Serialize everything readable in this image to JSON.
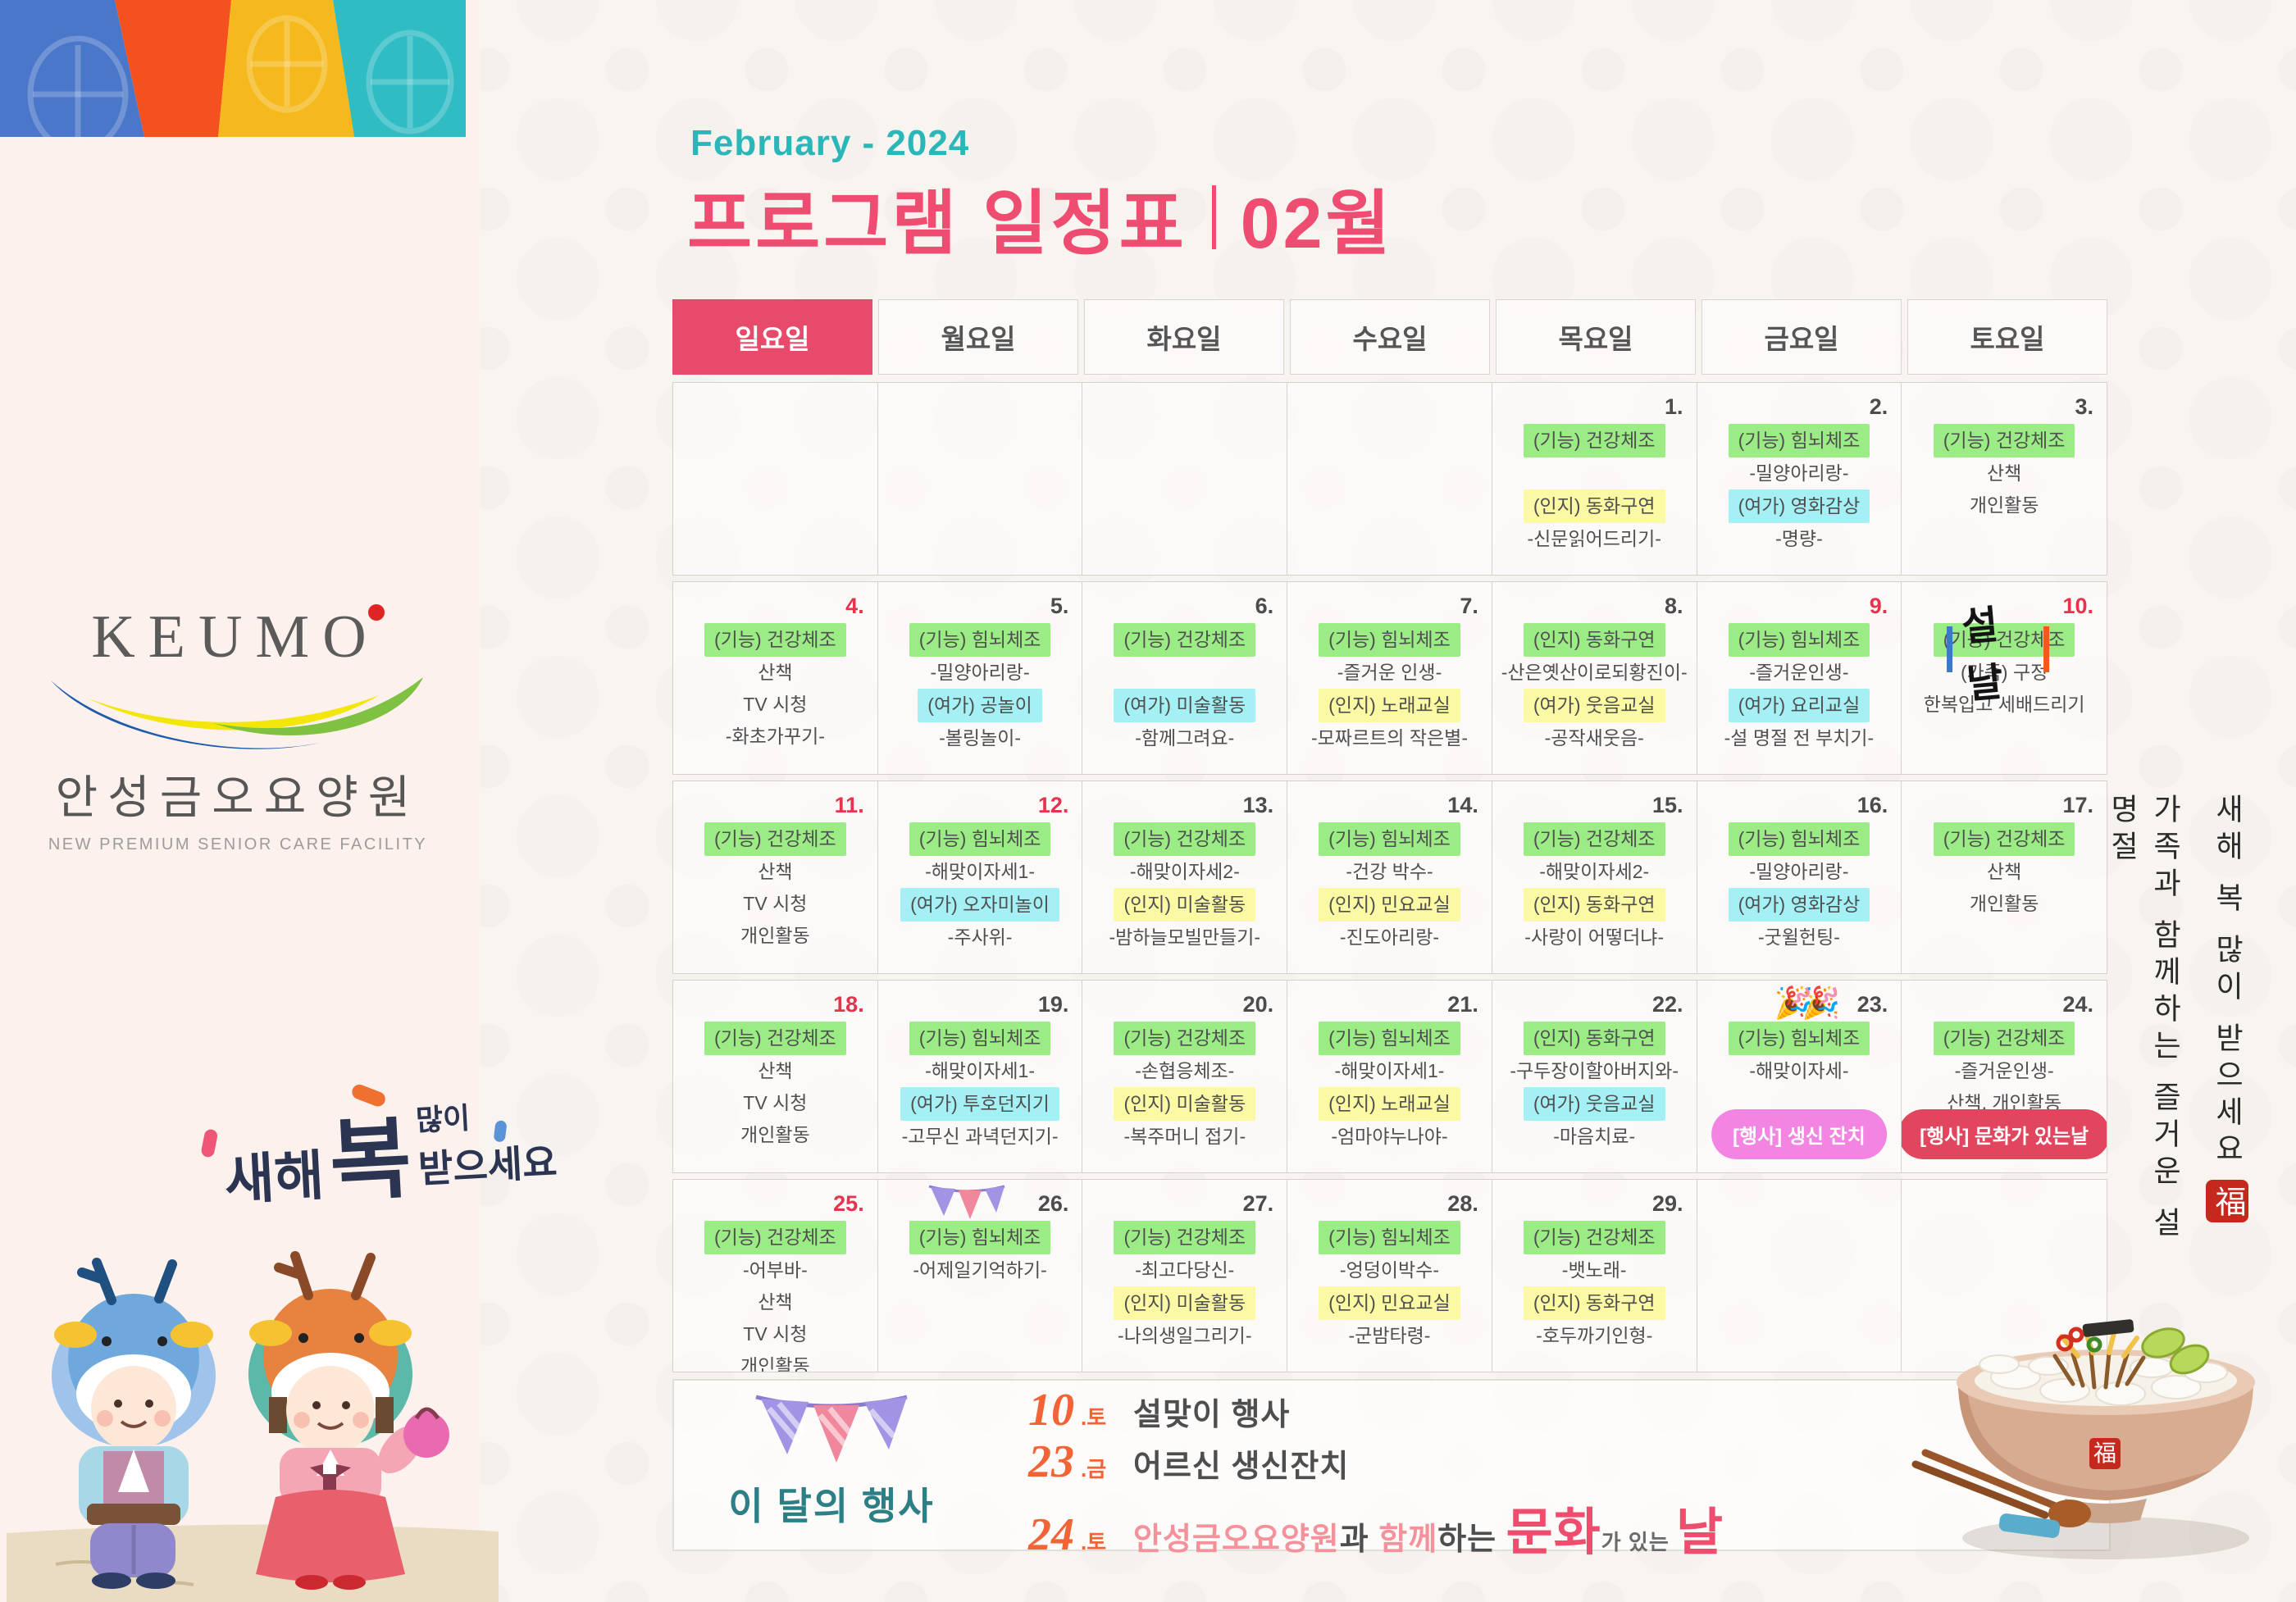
{
  "header": {
    "month_en": "February - 2024",
    "title": "프로그램 일정표",
    "month_kr": "02월"
  },
  "sidebar": {
    "brand": {
      "name": "KEUMO",
      "org": "안성금오요양원",
      "tagline": "NEW PREMIUM SENIOR CARE  FACILITY"
    },
    "calli": {
      "p1": "새해",
      "p2": "복",
      "p3": "많이",
      "p4": "받으세요"
    }
  },
  "colors": {
    "title_pink": "#ee4d71",
    "month_teal": "#2ab7ba",
    "sunday_header": "#e84a6b",
    "holiday_red": "#e5344e",
    "event_title_teal": "#2d7f86",
    "event_number_orange": "#f26335"
  },
  "calendar": {
    "day_headers": [
      "일요일",
      "월요일",
      "화요일",
      "수요일",
      "목요일",
      "금요일",
      "토요일"
    ],
    "highlight_colors": {
      "green": "#9cec86",
      "yellow": "#fcf9a4",
      "cyan": "#a4f0f4"
    },
    "badge_colors": {
      "pink": "#f285e2",
      "red": "#e2455e"
    },
    "seollal_label": "설날",
    "party_emoji": "🎉🎉",
    "weeks": [
      [
        {},
        {},
        {},
        {},
        {
          "day": "1",
          "lines": [
            {
              "t": "(기능) 건강체조",
              "h": "green"
            },
            {
              "t": ""
            },
            {
              "t": "(인지) 동화구연",
              "h": "yellow"
            },
            {
              "t": "-신문읽어드리기-"
            }
          ]
        },
        {
          "day": "2",
          "lines": [
            {
              "t": "(기능) 힘뇌체조",
              "h": "green"
            },
            {
              "t": "-밀양아리랑-"
            },
            {
              "t": "(여가) 영화감상",
              "h": "cyan"
            },
            {
              "t": "-명량-"
            }
          ]
        },
        {
          "day": "3",
          "lines": [
            {
              "t": "(기능) 건강체조",
              "h": "green"
            },
            {
              "t": "산책"
            },
            {
              "t": "개인활동"
            }
          ]
        }
      ],
      [
        {
          "day": "4",
          "red": true,
          "lines": [
            {
              "t": "(기능) 건강체조",
              "h": "green"
            },
            {
              "t": "산책"
            },
            {
              "t": "TV 시청"
            },
            {
              "t": "-화초가꾸기-"
            }
          ]
        },
        {
          "day": "5",
          "lines": [
            {
              "t": "(기능) 힘뇌체조",
              "h": "green"
            },
            {
              "t": "-밀양아리랑-"
            },
            {
              "t": "(여가) 공놀이",
              "h": "cyan"
            },
            {
              "t": "-볼링놀이-"
            }
          ]
        },
        {
          "day": "6",
          "lines": [
            {
              "t": "(기능) 건강체조",
              "h": "green"
            },
            {
              "t": ""
            },
            {
              "t": "(여가) 미술활동",
              "h": "cyan"
            },
            {
              "t": "-함께그려요-"
            }
          ]
        },
        {
          "day": "7",
          "lines": [
            {
              "t": "(기능) 힘뇌체조",
              "h": "green"
            },
            {
              "t": "-즐거운 인생-"
            },
            {
              "t": "(인지) 노래교실",
              "h": "yellow"
            },
            {
              "t": "-모짜르트의 작은별-"
            }
          ]
        },
        {
          "day": "8",
          "lines": [
            {
              "t": "(인지) 동화구연",
              "h": "green"
            },
            {
              "t": "-산은옛산이로되황진이-"
            },
            {
              "t": "(여가) 웃음교실",
              "h": "yellow"
            },
            {
              "t": "-공작새웃음-"
            }
          ]
        },
        {
          "day": "9",
          "red": true,
          "lines": [
            {
              "t": "(기능) 힘뇌체조",
              "h": "green"
            },
            {
              "t": "-즐거운인생-"
            },
            {
              "t": "(여가) 요리교실",
              "h": "cyan"
            },
            {
              "t": "-설 명절 전 부치기-"
            }
          ]
        },
        {
          "day": "10",
          "red": true,
          "marker": "seollal",
          "lines": [
            {
              "t": "(기능) 건강체조",
              "h": "green"
            },
            {
              "t": "(가족) 구정"
            },
            {
              "t": "한복입고 세배드리기"
            }
          ]
        }
      ],
      [
        {
          "day": "11",
          "red": true,
          "lines": [
            {
              "t": "(기능) 건강체조",
              "h": "green"
            },
            {
              "t": "산책"
            },
            {
              "t": "TV 시청"
            },
            {
              "t": "개인활동"
            }
          ]
        },
        {
          "day": "12",
          "red": true,
          "lines": [
            {
              "t": "(기능) 힘뇌체조",
              "h": "green"
            },
            {
              "t": "-해맞이자세1-"
            },
            {
              "t": "(여가) 오자미놀이",
              "h": "cyan"
            },
            {
              "t": "-주사위-"
            }
          ]
        },
        {
          "day": "13",
          "lines": [
            {
              "t": "(기능) 건강체조",
              "h": "green"
            },
            {
              "t": "-해맞이자세2-"
            },
            {
              "t": "(인지) 미술활동",
              "h": "yellow"
            },
            {
              "t": "-밤하늘모빌만들기-"
            }
          ]
        },
        {
          "day": "14",
          "lines": [
            {
              "t": "(기능) 힘뇌체조",
              "h": "green"
            },
            {
              "t": "-건강 박수-"
            },
            {
              "t": "(인지) 민요교실",
              "h": "yellow"
            },
            {
              "t": "-진도아리랑-"
            }
          ]
        },
        {
          "day": "15",
          "lines": [
            {
              "t": "(기능) 건강체조",
              "h": "green"
            },
            {
              "t": "-해맞이자세2-"
            },
            {
              "t": "(인지) 동화구연",
              "h": "yellow"
            },
            {
              "t": "-사랑이 어떻더냐-"
            }
          ]
        },
        {
          "day": "16",
          "lines": [
            {
              "t": "(기능) 힘뇌체조",
              "h": "green"
            },
            {
              "t": "-밀양아리랑-"
            },
            {
              "t": "(여가) 영화감상",
              "h": "cyan"
            },
            {
              "t": "-굿윌헌팅-"
            }
          ]
        },
        {
          "day": "17",
          "lines": [
            {
              "t": "(기능) 건강체조",
              "h": "green"
            },
            {
              "t": "산책"
            },
            {
              "t": "개인활동"
            }
          ]
        }
      ],
      [
        {
          "day": "18",
          "red": true,
          "lines": [
            {
              "t": "(기능) 건강체조",
              "h": "green"
            },
            {
              "t": "산책"
            },
            {
              "t": "TV 시청"
            },
            {
              "t": "개인활동"
            }
          ]
        },
        {
          "day": "19",
          "lines": [
            {
              "t": "(기능) 힘뇌체조",
              "h": "green"
            },
            {
              "t": "-해맞이자세1-"
            },
            {
              "t": "(여가) 투호던지기",
              "h": "cyan"
            },
            {
              "t": "-고무신 과녁던지기-"
            }
          ]
        },
        {
          "day": "20",
          "lines": [
            {
              "t": "(기능) 건강체조",
              "h": "green"
            },
            {
              "t": "-손협응체조-"
            },
            {
              "t": "(인지) 미술활동",
              "h": "yellow"
            },
            {
              "t": "-복주머니 접기-"
            }
          ]
        },
        {
          "day": "21",
          "lines": [
            {
              "t": "(기능) 힘뇌체조",
              "h": "green"
            },
            {
              "t": "-해맞이자세1-"
            },
            {
              "t": "(인지) 노래교실",
              "h": "yellow"
            },
            {
              "t": "-엄마야누나야-"
            }
          ]
        },
        {
          "day": "22",
          "lines": [
            {
              "t": "(인지) 동화구연",
              "h": "green"
            },
            {
              "t": "-구두장이할아버지와-"
            },
            {
              "t": "(여가) 웃음교실",
              "h": "cyan"
            },
            {
              "t": "-마음치료-"
            }
          ]
        },
        {
          "day": "23",
          "marker": "party",
          "lines": [
            {
              "t": "(기능) 힘뇌체조",
              "h": "green"
            },
            {
              "t": "-해맞이자세-"
            }
          ],
          "badge": {
            "t": "[행사] 생신 잔치",
            "c": "pink"
          }
        },
        {
          "day": "24",
          "lines": [
            {
              "t": "(기능) 건강체조",
              "h": "green"
            },
            {
              "t": "-즐거운인생-"
            },
            {
              "t": "산책, 개인활동"
            }
          ],
          "badge": {
            "t": "[행사] 문화가 있는날",
            "c": "red"
          }
        }
      ],
      [
        {
          "day": "25",
          "red": true,
          "lines": [
            {
              "t": "(기능) 건강체조",
              "h": "green"
            },
            {
              "t": "-어부바-"
            },
            {
              "t": "산책"
            },
            {
              "t": "TV 시청"
            },
            {
              "t": "개인활동"
            }
          ]
        },
        {
          "day": "26",
          "marker": "bunting",
          "lines": [
            {
              "t": "(기능) 힘뇌체조",
              "h": "green"
            },
            {
              "t": "-어제일기억하기-"
            }
          ]
        },
        {
          "day": "27",
          "lines": [
            {
              "t": "(기능) 건강체조",
              "h": "green"
            },
            {
              "t": "-최고다당신-"
            },
            {
              "t": "(인지) 미술활동",
              "h": "yellow"
            },
            {
              "t": "-나의생일그리기-"
            }
          ]
        },
        {
          "day": "28",
          "lines": [
            {
              "t": "(기능) 힘뇌체조",
              "h": "green"
            },
            {
              "t": "-엉덩이박수-"
            },
            {
              "t": "(인지) 민요교실",
              "h": "yellow"
            },
            {
              "t": "-군밤타령-"
            }
          ]
        },
        {
          "day": "29",
          "lines": [
            {
              "t": "(기능) 건강체조",
              "h": "green"
            },
            {
              "t": "-뱃노래-"
            },
            {
              "t": "(인지) 동화구연",
              "h": "yellow"
            },
            {
              "t": "-호두까기인형-"
            }
          ]
        },
        {},
        {}
      ]
    ]
  },
  "events": {
    "title": "이 달의 행사",
    "items": [
      {
        "day": "10",
        "dow": ".토",
        "text": "설맞이 행사"
      },
      {
        "day": "23",
        "dow": ".금",
        "text": "어르신 생신잔치"
      },
      {
        "day": "24",
        "dow": ".토",
        "rich": [
          {
            "t": "안성금오요양원",
            "s": "pink"
          },
          {
            "t": "과 ",
            "s": "gray"
          },
          {
            "t": "함께",
            "s": "pink"
          },
          {
            "t": "하는 ",
            "s": "gray"
          },
          {
            "t": "문화",
            "s": "big-pink"
          },
          {
            "t": "가",
            "s": "small-gray"
          },
          {
            "t": " 있는 ",
            "s": "small-gray"
          },
          {
            "t": "날",
            "s": "big-pink"
          }
        ]
      }
    ]
  },
  "vertical": {
    "line1": "새해 복 많이 받으세요",
    "seal": "福",
    "line2": "가족과 함께하는 즐거운 설 명절"
  }
}
